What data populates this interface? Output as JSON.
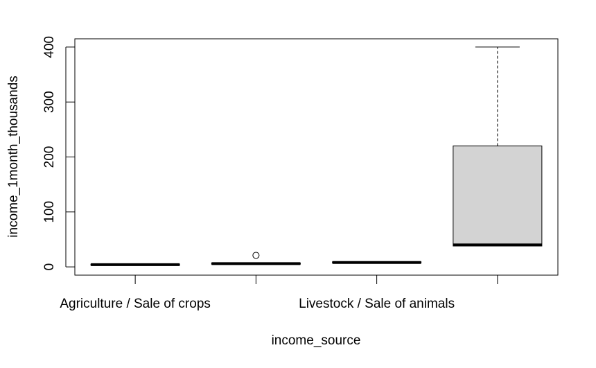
{
  "chart_data": {
    "type": "box",
    "title": "",
    "xlabel": "income_source",
    "ylabel": "income_1month_thousands",
    "ylim": [
      -15,
      415
    ],
    "yticks": [
      0,
      100,
      200,
      300,
      400
    ],
    "categories_printed": [
      "Agriculture / Sale of crops",
      "Livestock / Sale of animals"
    ],
    "boxes": [
      {
        "min": 3,
        "q1": 3,
        "median": 4,
        "q3": 5,
        "max": 5,
        "outliers": []
      },
      {
        "min": 5,
        "q1": 5,
        "median": 6,
        "q3": 7,
        "max": 7,
        "outliers": [
          21
        ]
      },
      {
        "min": 8,
        "q1": 8,
        "median": 8,
        "q3": 9,
        "max": 9,
        "outliers": []
      },
      {
        "min": 38,
        "q1": 38,
        "median": 40,
        "q3": 220,
        "max": 400,
        "outliers": []
      }
    ],
    "colors": {
      "box_fill": "#d3d3d3",
      "line": "#000000",
      "background": "#ffffff"
    },
    "grid": false,
    "legend": "none"
  }
}
